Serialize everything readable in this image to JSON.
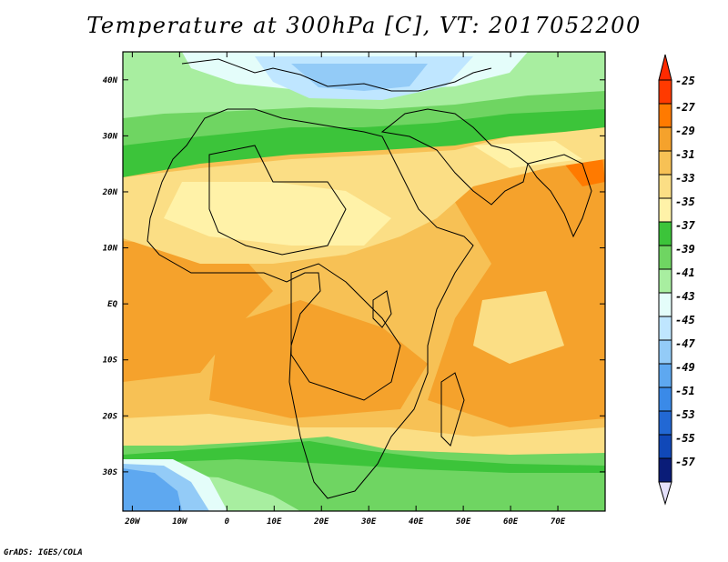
{
  "title": "Temperature at 300hPa [C], VT: 2017052200",
  "credit": "GrADS: IGES/COLA",
  "map": {
    "projection": "latlon",
    "lon_range": [
      -22,
      80
    ],
    "lat_range": [
      -37,
      45
    ],
    "x_ticks": [
      "20W",
      "10W",
      "0",
      "10E",
      "20E",
      "30E",
      "40E",
      "50E",
      "60E",
      "70E"
    ],
    "x_tick_values": [
      -20,
      -10,
      0,
      10,
      20,
      30,
      40,
      50,
      60,
      70
    ],
    "y_ticks": [
      "40N",
      "30N",
      "20N",
      "10N",
      "EQ",
      "10S",
      "20S",
      "30S"
    ],
    "y_tick_values": [
      40,
      30,
      20,
      10,
      0,
      -10,
      -20,
      -30
    ]
  },
  "colorbar": {
    "labels": [
      "-25",
      "-27",
      "-29",
      "-31",
      "-33",
      "-35",
      "-37",
      "-39",
      "-41",
      "-43",
      "-45",
      "-47",
      "-49",
      "-51",
      "-53",
      "-55",
      "-57"
    ],
    "colors": [
      "#ff3a00",
      "#ff7a00",
      "#f5a22c",
      "#f7c155",
      "#fbde85",
      "#fff2a8",
      "#3cc43a",
      "#6fd562",
      "#a8eea0",
      "#e4fdfa",
      "#bfe6ff",
      "#93cbf7",
      "#5ea8f0",
      "#3a8ae8",
      "#2268d4",
      "#1048b8",
      "#0a1c78"
    ],
    "top_arrow_color": "#ff2a00",
    "bottom_arrow_color": "#e4e0fb"
  }
}
